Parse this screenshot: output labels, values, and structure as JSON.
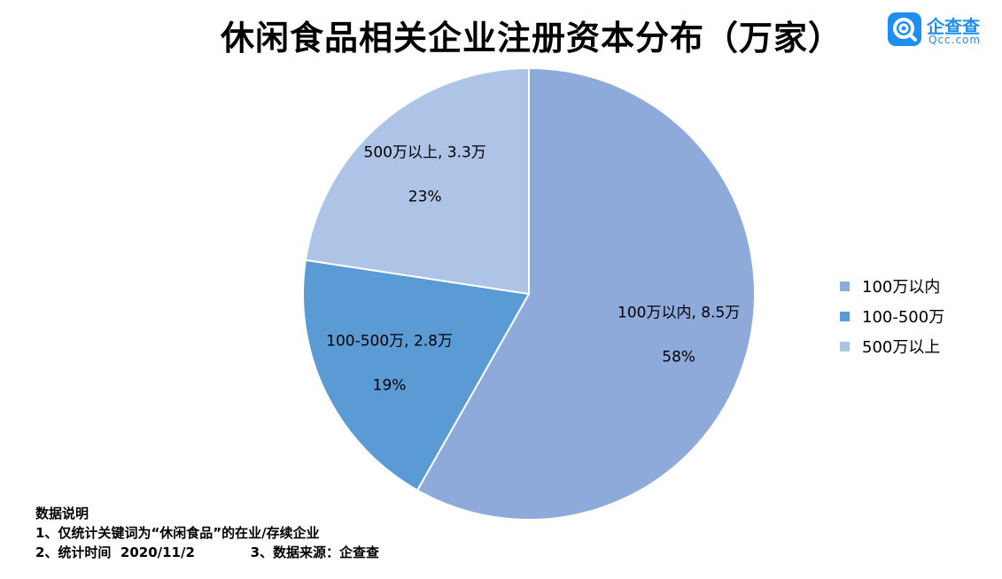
{
  "header": {
    "title": "休闲食品相关企业注册资本分布（万家）"
  },
  "logo": {
    "name": "企查查",
    "url": "Qcc.com",
    "color": "#1f8ef0"
  },
  "chart_data": {
    "type": "pie",
    "title": "休闲食品相关企业注册资本分布（万家）",
    "start_angle_deg": 0,
    "direction": "clockwise",
    "legend_position": "right",
    "slices": [
      {
        "name": "100万以内",
        "value": 8.5,
        "percent": "58%",
        "label": "100万以内, 8.5万",
        "color": "#8eaadb"
      },
      {
        "name": "100-500万",
        "value": 2.8,
        "percent": "19%",
        "label": "100-500万, 2.8万",
        "color": "#5b9bd5"
      },
      {
        "name": "500万以上",
        "value": 3.3,
        "percent": "23%",
        "label": "500万以上, 3.3万",
        "color": "#adc4e6"
      }
    ]
  },
  "notes": {
    "heading": "数据说明",
    "line1": "1、仅统计关键词为“休闲食品”的在业/存续企业",
    "line2": "2、统计时间  2020/11/2            3、数据来源：企查查"
  }
}
